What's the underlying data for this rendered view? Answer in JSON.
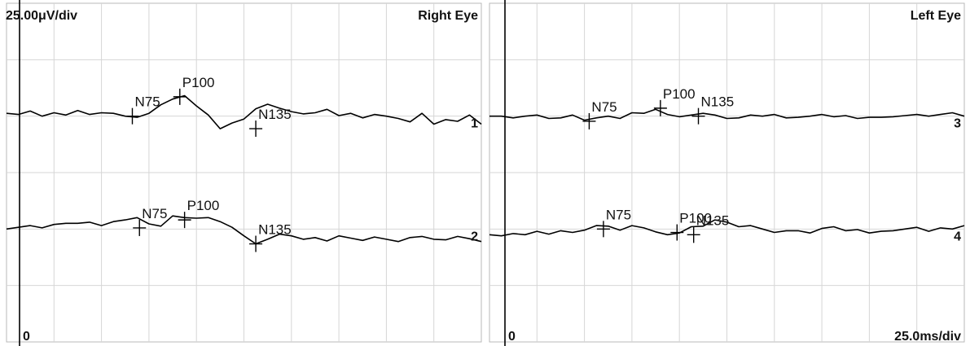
{
  "chart_data": [
    {
      "type": "line",
      "title": "Right Eye",
      "scale_label": "25.00μV/div",
      "origin_label": "0",
      "x_divisions": 10,
      "y_divisions": 6,
      "traces": [
        {
          "number": "1",
          "baseline_div": 2.0,
          "x": [
            0.0,
            0.25,
            0.5,
            0.75,
            1.0,
            1.25,
            1.5,
            1.75,
            2.0,
            2.25,
            2.5,
            2.75,
            3.0,
            3.25,
            3.5,
            3.75,
            4.0,
            4.25,
            4.5,
            4.75,
            5.0,
            5.25,
            5.5,
            5.75,
            6.0,
            6.25,
            6.5,
            6.75,
            7.0,
            7.25,
            7.5,
            7.75,
            8.0,
            8.25,
            8.5,
            8.75,
            9.0,
            9.25,
            9.5,
            9.75,
            10.0
          ],
          "y": [
            0.05,
            0.03,
            0.09,
            0.0,
            0.06,
            0.02,
            0.1,
            0.03,
            0.06,
            0.05,
            0.0,
            -0.02,
            0.05,
            0.2,
            0.3,
            0.36,
            0.18,
            0.02,
            -0.22,
            -0.12,
            -0.05,
            0.13,
            0.21,
            0.14,
            0.08,
            0.04,
            0.06,
            0.12,
            0.01,
            0.05,
            -0.03,
            0.03,
            0.0,
            -0.04,
            -0.1,
            0.05,
            -0.14,
            -0.06,
            -0.09,
            0.02,
            -0.14
          ],
          "peaks": [
            {
              "label": "N75",
              "x": 2.65,
              "y": 0.0
            },
            {
              "label": "P100",
              "x": 3.65,
              "y": 0.34
            },
            {
              "label": "N135",
              "x": 5.25,
              "y": -0.22
            }
          ]
        },
        {
          "number": "2",
          "baseline_div": 4.0,
          "x": [
            0.0,
            0.25,
            0.5,
            0.75,
            1.0,
            1.25,
            1.5,
            1.75,
            2.0,
            2.25,
            2.5,
            2.75,
            3.0,
            3.25,
            3.5,
            3.75,
            4.0,
            4.25,
            4.5,
            4.75,
            5.0,
            5.25,
            5.5,
            5.75,
            6.0,
            6.25,
            6.5,
            6.75,
            7.0,
            7.25,
            7.5,
            7.75,
            8.0,
            8.25,
            8.5,
            8.75,
            9.0,
            9.25,
            9.5,
            9.75,
            10.0
          ],
          "y": [
            0.0,
            0.03,
            0.06,
            0.02,
            0.08,
            0.1,
            0.1,
            0.12,
            0.06,
            0.13,
            0.16,
            0.2,
            0.09,
            0.05,
            0.23,
            0.2,
            0.19,
            0.2,
            0.13,
            0.03,
            -0.12,
            -0.26,
            -0.18,
            -0.09,
            -0.12,
            -0.18,
            -0.15,
            -0.21,
            -0.12,
            -0.16,
            -0.2,
            -0.14,
            -0.18,
            -0.22,
            -0.15,
            -0.13,
            -0.18,
            -0.19,
            -0.13,
            -0.17,
            -0.22
          ],
          "peaks": [
            {
              "label": "N75",
              "x": 2.8,
              "y": 0.02
            },
            {
              "label": "P100",
              "x": 3.75,
              "y": 0.16
            },
            {
              "label": "N135",
              "x": 5.25,
              "y": -0.26
            }
          ]
        }
      ]
    },
    {
      "type": "line",
      "title": "Left Eye",
      "scale_label": "25.0ms/div",
      "origin_label": "0",
      "x_divisions": 10,
      "y_divisions": 6,
      "traces": [
        {
          "number": "3",
          "baseline_div": 2.0,
          "x": [
            0.0,
            0.25,
            0.5,
            0.75,
            1.0,
            1.25,
            1.5,
            1.75,
            2.0,
            2.25,
            2.5,
            2.75,
            3.0,
            3.25,
            3.5,
            3.75,
            4.0,
            4.25,
            4.5,
            4.75,
            5.0,
            5.25,
            5.5,
            5.75,
            6.0,
            6.25,
            6.5,
            6.75,
            7.0,
            7.25,
            7.5,
            7.75,
            8.0,
            8.25,
            8.5,
            8.75,
            9.0,
            9.25,
            9.5,
            9.75,
            10.0
          ],
          "y": [
            0.0,
            0.0,
            -0.03,
            0.0,
            0.02,
            -0.04,
            -0.03,
            0.02,
            -0.07,
            -0.03,
            0.0,
            -0.04,
            0.06,
            0.05,
            0.12,
            0.03,
            -0.01,
            0.02,
            0.05,
            0.02,
            -0.04,
            -0.03,
            0.02,
            0.0,
            0.03,
            -0.03,
            -0.02,
            0.0,
            0.03,
            -0.01,
            0.01,
            -0.04,
            -0.02,
            -0.02,
            -0.01,
            0.01,
            0.03,
            0.0,
            0.03,
            0.06,
            0.0
          ],
          "peaks": [
            {
              "label": "N75",
              "x": 2.1,
              "y": -0.09
            },
            {
              "label": "P100",
              "x": 3.6,
              "y": 0.14
            },
            {
              "label": "N135",
              "x": 4.4,
              "y": 0.0
            }
          ]
        },
        {
          "number": "4",
          "baseline_div": 4.0,
          "x": [
            0.0,
            0.25,
            0.5,
            0.75,
            1.0,
            1.25,
            1.5,
            1.75,
            2.0,
            2.25,
            2.5,
            2.75,
            3.0,
            3.25,
            3.5,
            3.75,
            4.0,
            4.25,
            4.5,
            4.75,
            5.0,
            5.25,
            5.5,
            5.75,
            6.0,
            6.25,
            6.5,
            6.75,
            7.0,
            7.25,
            7.5,
            7.75,
            8.0,
            8.25,
            8.5,
            8.75,
            9.0,
            9.25,
            9.5,
            9.75,
            10.0
          ],
          "y": [
            -0.1,
            -0.12,
            -0.08,
            -0.1,
            -0.04,
            -0.09,
            -0.03,
            -0.06,
            -0.02,
            0.06,
            0.05,
            -0.02,
            0.06,
            0.02,
            -0.05,
            -0.1,
            -0.07,
            0.04,
            0.05,
            0.16,
            0.12,
            0.04,
            0.06,
            0.0,
            -0.06,
            -0.03,
            -0.03,
            -0.07,
            0.01,
            0.04,
            -0.03,
            -0.01,
            -0.07,
            -0.04,
            -0.03,
            0.0,
            0.03,
            -0.04,
            0.02,
            0.0,
            0.06
          ],
          "peaks": [
            {
              "label": "N75",
              "x": 2.4,
              "y": 0.0
            },
            {
              "label": "P100",
              "x": 3.95,
              "y": -0.06
            },
            {
              "label": "N135",
              "x": 4.3,
              "y": -0.1
            }
          ]
        }
      ]
    }
  ]
}
